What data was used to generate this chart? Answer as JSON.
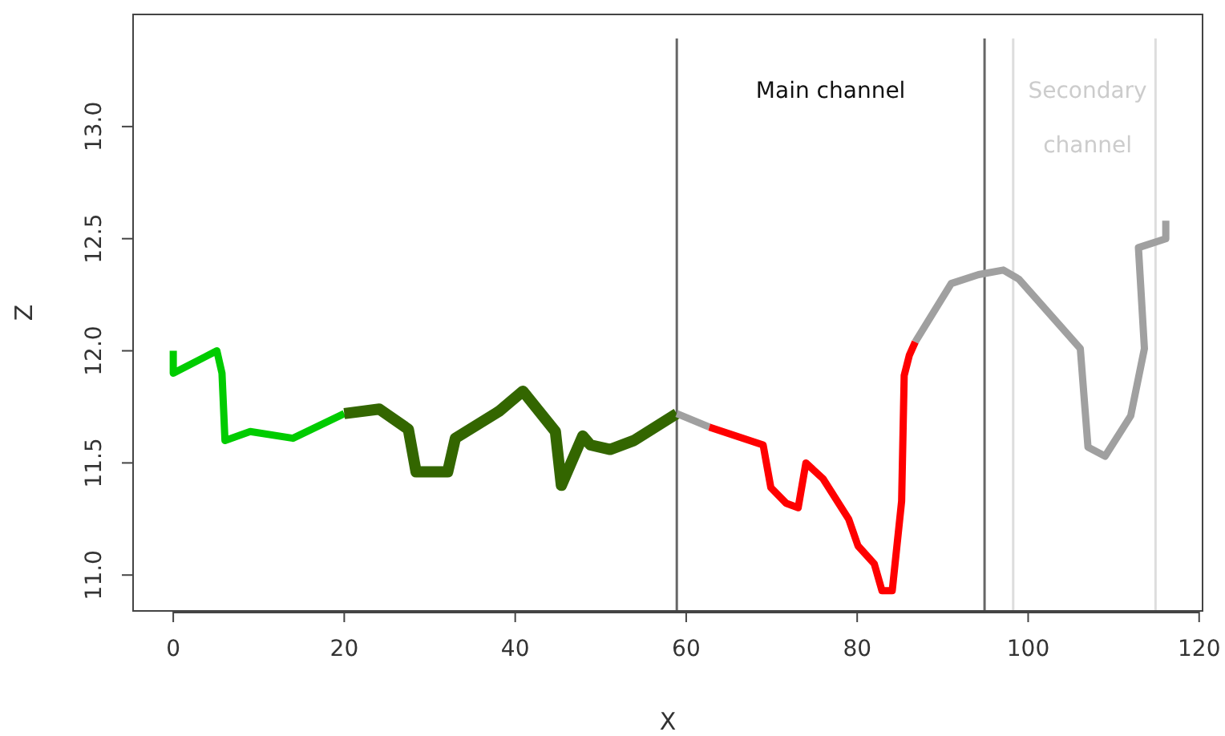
{
  "chart_data": {
    "type": "line",
    "xlabel": "X",
    "ylabel": "Z",
    "xlim": [
      -4.7,
      120.4
    ],
    "ylim": [
      10.84,
      13.5
    ],
    "xticks": [
      0,
      20,
      40,
      60,
      80,
      100,
      120
    ],
    "yticks": [
      {
        "value": 11,
        "label": "11.0"
      },
      {
        "value": 11.5,
        "label": "11.5"
      },
      {
        "value": 12,
        "label": "12.0"
      },
      {
        "value": 12.5,
        "label": "12.5"
      },
      {
        "value": 13,
        "label": "13.0"
      }
    ],
    "grid": false,
    "marker": "none",
    "line_style": "solid",
    "series": [
      {
        "color": "#00cc00",
        "x": [
          0,
          0,
          5.1,
          5.7,
          6.05,
          9,
          14,
          20
        ],
        "values": [
          12.0,
          11.9,
          12.0,
          11.9,
          11.6,
          11.64,
          11.61,
          11.72
        ]
      },
      {
        "color": "#336600",
        "x": [
          20,
          24.1,
          27.5,
          28.4,
          32.1,
          33,
          38.1,
          40.9,
          44.7,
          45.4,
          47.9,
          48.8,
          51.1,
          53.9,
          58.9
        ],
        "values": [
          11.72,
          11.74,
          11.65,
          11.46,
          11.46,
          11.61,
          11.73,
          11.82,
          11.64,
          11.4,
          11.62,
          11.58,
          11.56,
          11.6,
          11.72
        ]
      },
      {
        "color": "#a0a0a0",
        "x": [
          58.9,
          62.7
        ],
        "values": [
          11.72,
          11.66
        ]
      },
      {
        "color": "#ff0000",
        "x": [
          62.7,
          69,
          69.9,
          71.7,
          73.1,
          74,
          76,
          79,
          80.1,
          82,
          82.9,
          84.1,
          85.2,
          85.5,
          86.1,
          86.8
        ],
        "values": [
          11.66,
          11.58,
          11.39,
          11.32,
          11.3,
          11.5,
          11.43,
          11.25,
          11.13,
          11.05,
          10.93,
          10.93,
          11.33,
          11.89,
          11.98,
          12.04
        ]
      },
      {
        "color": "#a0a0a0",
        "x": [
          86.8,
          91,
          94.2,
          97.1,
          98.9,
          106.1,
          107,
          109,
          112,
          113.6,
          112.9,
          116.1,
          116.1
        ],
        "values": [
          12.04,
          12.3,
          12.34,
          12.36,
          12.32,
          12.01,
          11.57,
          11.53,
          11.71,
          12.01,
          12.46,
          12.5,
          12.58
        ]
      }
    ],
    "ref_lines": [
      {
        "axis": "x",
        "value": 58.9,
        "color": "#666666"
      },
      {
        "axis": "x",
        "value": 94.9,
        "color": "#666666"
      },
      {
        "axis": "x",
        "value": 98.25,
        "color": "#dddddd"
      },
      {
        "axis": "x",
        "value": 114.9,
        "color": "#dddddd"
      }
    ],
    "annotations": [
      "Main channel",
      "Secondary channel"
    ]
  }
}
